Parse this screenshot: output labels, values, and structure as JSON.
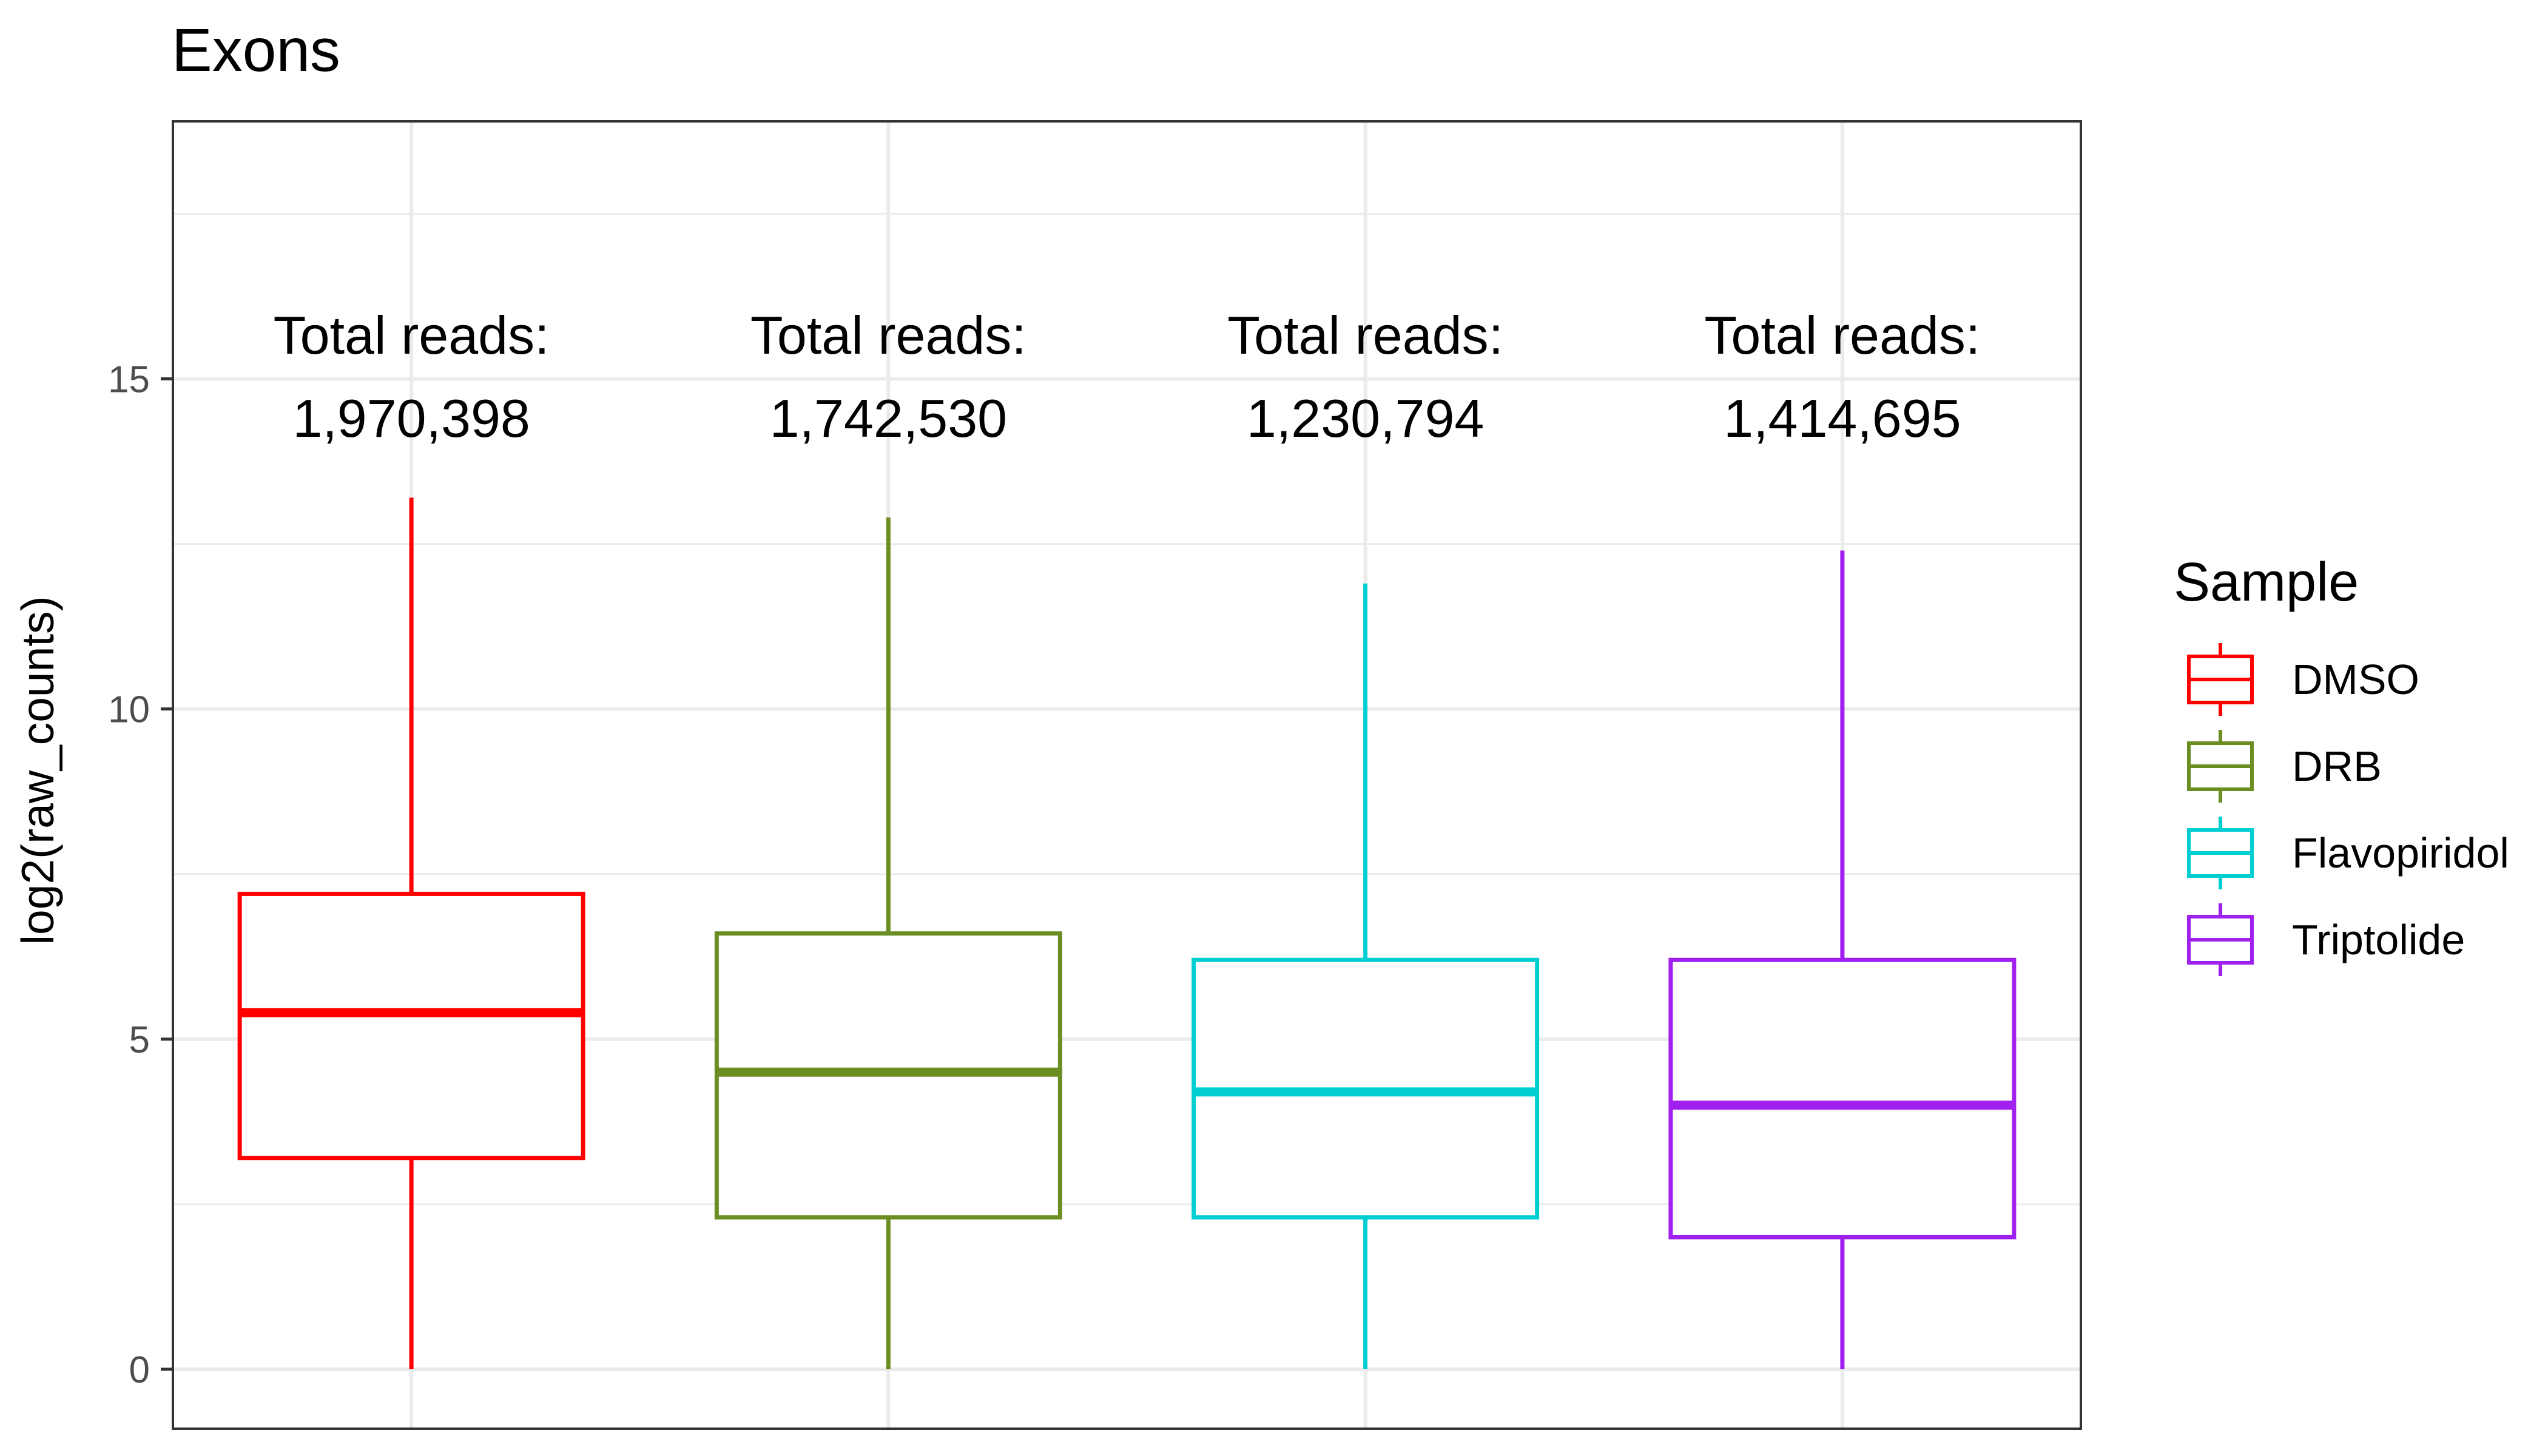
{
  "chart_data": {
    "type": "boxplot",
    "title": "Exons",
    "xlabel": "",
    "ylabel": "log2(raw_counts)",
    "ylim": [
      -0.9,
      18.9
    ],
    "yticks": [
      0,
      5,
      10,
      15
    ],
    "grid": true,
    "legend": {
      "title": "Sample",
      "placement": "right"
    },
    "annotation_prefix": "Total reads:",
    "series": [
      {
        "name": "DMSO",
        "color": "#FF0000",
        "whisker_low": 0,
        "q1": 3.2,
        "median": 5.4,
        "q3": 7.2,
        "whisker_high": 13.2,
        "total_reads": "1,970,398"
      },
      {
        "name": "DRB",
        "color": "#6B8E23",
        "whisker_low": 0,
        "q1": 2.3,
        "median": 4.5,
        "q3": 6.6,
        "whisker_high": 12.9,
        "total_reads": "1,742,530"
      },
      {
        "name": "Flavopiridol",
        "color": "#00CED1",
        "whisker_low": 0,
        "q1": 2.3,
        "median": 4.2,
        "q3": 6.2,
        "whisker_high": 11.9,
        "total_reads": "1,230,794"
      },
      {
        "name": "Triptolide",
        "color": "#A020F0",
        "whisker_low": 0,
        "q1": 2.0,
        "median": 4.0,
        "q3": 6.2,
        "whisker_high": 12.4,
        "total_reads": "1,414,695"
      }
    ]
  }
}
